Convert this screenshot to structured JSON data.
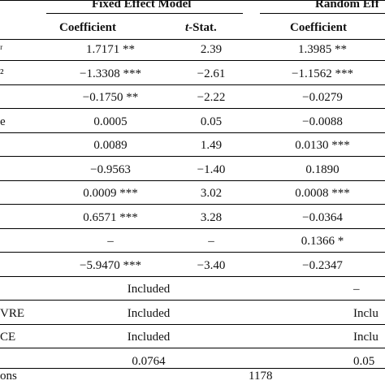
{
  "header": {
    "group_fixed": "Fixed Effect Model",
    "group_random": "Random Eff",
    "col_coefficient_fe": "Coefficient",
    "col_tstat_fe_prefix": "t",
    "col_tstat_fe_suffix": "-Stat.",
    "col_coefficient_re": "Coefficient"
  },
  "rows": [
    {
      "stub": "ʳ",
      "fe_coef": "1.7171 **",
      "fe_t": "2.39",
      "re_coef": "1.3985 **",
      "re_t": ""
    },
    {
      "stub": "²",
      "fe_coef": "−1.3308 ***",
      "fe_t": "−2.61",
      "re_coef": "−1.1562 ***",
      "re_t": ""
    },
    {
      "stub": "",
      "fe_coef": "−0.1750 **",
      "fe_t": "−2.22",
      "re_coef": "−0.0279",
      "re_t": ""
    },
    {
      "stub": "e",
      "fe_coef": "0.0005",
      "fe_t": "0.05",
      "re_coef": "−0.0088",
      "re_t": ""
    },
    {
      "stub": "",
      "fe_coef": "0.0089",
      "fe_t": "1.49",
      "re_coef": "0.0130 ***",
      "re_t": ""
    },
    {
      "stub": "",
      "fe_coef": "−0.9563",
      "fe_t": "−1.40",
      "re_coef": "0.1890",
      "re_t": ""
    },
    {
      "stub": "",
      "fe_coef": "0.0009 ***",
      "fe_t": "3.02",
      "re_coef": "0.0008 ***",
      "re_t": ""
    },
    {
      "stub": "",
      "fe_coef": "0.6571 ***",
      "fe_t": "3.28",
      "re_coef": "−0.0364",
      "re_t": ""
    },
    {
      "stub": "",
      "fe_coef": "–",
      "fe_t": "–",
      "re_coef": "0.1366 *",
      "re_t": ""
    },
    {
      "stub": "",
      "fe_coef": "−5.9470 ***",
      "fe_t": "−3.40",
      "re_coef": "−0.2347",
      "re_t": ""
    }
  ],
  "effects": [
    {
      "stub": "",
      "fe": "Included",
      "re": "–"
    },
    {
      "stub": "VRE",
      "fe": "Included",
      "re": "Inclu"
    },
    {
      "stub": "CE",
      "fe": "Included",
      "re": "Inclu"
    },
    {
      "stub": "",
      "fe": "0.0764",
      "re": "0.05"
    }
  ],
  "obs": {
    "stub": "ons",
    "value": "1178"
  }
}
